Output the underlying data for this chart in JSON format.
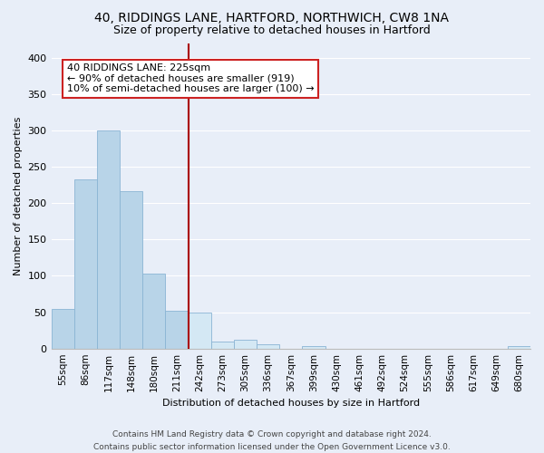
{
  "title": "40, RIDDINGS LANE, HARTFORD, NORTHWICH, CW8 1NA",
  "subtitle": "Size of property relative to detached houses in Hartford",
  "xlabel": "Distribution of detached houses by size in Hartford",
  "ylabel": "Number of detached properties",
  "bin_labels": [
    "55sqm",
    "86sqm",
    "117sqm",
    "148sqm",
    "180sqm",
    "211sqm",
    "242sqm",
    "273sqm",
    "305sqm",
    "336sqm",
    "367sqm",
    "399sqm",
    "430sqm",
    "461sqm",
    "492sqm",
    "524sqm",
    "555sqm",
    "586sqm",
    "617sqm",
    "649sqm",
    "680sqm"
  ],
  "bar_heights": [
    54,
    233,
    300,
    216,
    103,
    52,
    49,
    10,
    12,
    6,
    0,
    3,
    0,
    0,
    0,
    0,
    0,
    0,
    0,
    0,
    3
  ],
  "bar_color_left": "#b8d4e8",
  "bar_color_right": "#d4e8f4",
  "bar_edge_color": "#8ab4d4",
  "vline_color": "#aa0000",
  "annotation_text": "40 RIDDINGS LANE: 225sqm\n← 90% of detached houses are smaller (919)\n10% of semi-detached houses are larger (100) →",
  "annotation_box_edgecolor": "#cc2222",
  "ylim": [
    0,
    420
  ],
  "yticks": [
    0,
    50,
    100,
    150,
    200,
    250,
    300,
    350,
    400
  ],
  "footer_line1": "Contains HM Land Registry data © Crown copyright and database right 2024.",
  "footer_line2": "Contains public sector information licensed under the Open Government Licence v3.0.",
  "bg_color": "#e8eef8",
  "plot_bg_color": "#e8eef8",
  "grid_color": "#ffffff",
  "title_fontsize": 10,
  "subtitle_fontsize": 9,
  "xlabel_fontsize": 8,
  "ylabel_fontsize": 8,
  "tick_labelsize": 7.5,
  "ytick_labelsize": 8,
  "annotation_fontsize": 8,
  "footer_fontsize": 6.5
}
